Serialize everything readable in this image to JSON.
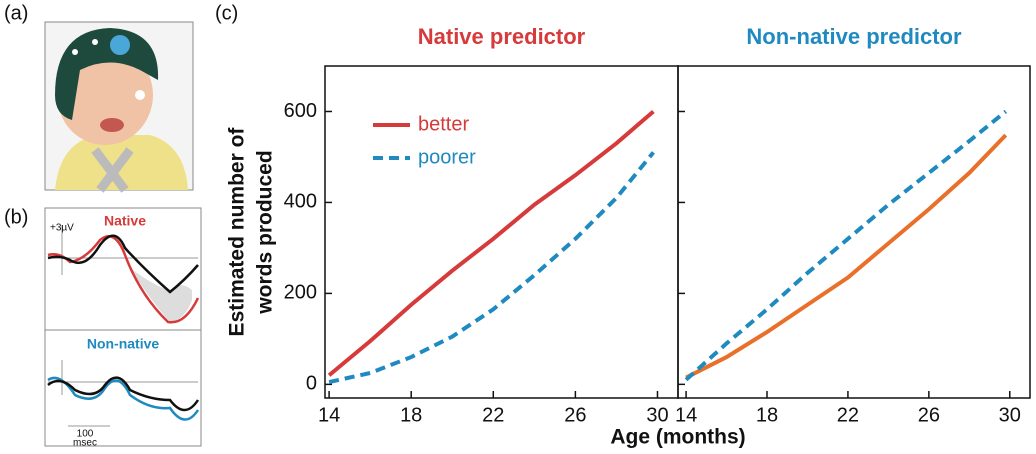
{
  "panels": {
    "a": {
      "label": "(a)"
    },
    "b": {
      "label": "(b)",
      "scale": "+3µV",
      "top_title": "Native",
      "bottom_title": "Non-native",
      "time_value": "100",
      "time_unit": "msec"
    },
    "c": {
      "label": "(c)"
    }
  },
  "chart_data": [
    {
      "type": "line",
      "title": "Native predictor",
      "title_color": "#d63a3a",
      "ylabel": [
        "Estimated number of",
        "words produced"
      ],
      "xlabel": "Age (months)",
      "x": [
        14,
        16,
        18,
        20,
        22,
        24,
        26,
        28,
        29.8
      ],
      "series": [
        {
          "name": "better",
          "color": "#d63a3a",
          "dashed": false,
          "values": [
            20,
            95,
            175,
            250,
            320,
            395,
            460,
            530,
            600
          ]
        },
        {
          "name": "poorer",
          "color": "#1f8ac0",
          "dashed": true,
          "values": [
            5,
            25,
            60,
            105,
            165,
            240,
            320,
            410,
            510
          ]
        }
      ],
      "xlim": [
        13.8,
        31
      ],
      "ylim": [
        -30,
        700
      ],
      "xticks": [
        14,
        18,
        22,
        26,
        30
      ],
      "yticks": [
        0,
        200,
        400,
        600
      ],
      "ytick_labels": true,
      "legend": true
    },
    {
      "type": "line",
      "title": "Non-native predictor",
      "title_color": "#1f8ac0",
      "x": [
        14,
        16,
        18,
        20,
        22,
        24,
        26,
        28,
        29.8
      ],
      "series": [
        {
          "color": "#e8702a",
          "dashed": false,
          "values": [
            15,
            60,
            115,
            175,
            235,
            310,
            385,
            465,
            548
          ]
        },
        {
          "color": "#1f8ac0",
          "dashed": true,
          "values": [
            10,
            90,
            165,
            245,
            320,
            395,
            465,
            535,
            600
          ]
        }
      ],
      "xlim": [
        13.6,
        31
      ],
      "ylim": [
        -30,
        700
      ],
      "xticks": [
        14,
        18,
        22,
        26,
        30
      ],
      "yticks": [
        0,
        200,
        400,
        600
      ],
      "ytick_labels": false,
      "legend": false
    }
  ]
}
